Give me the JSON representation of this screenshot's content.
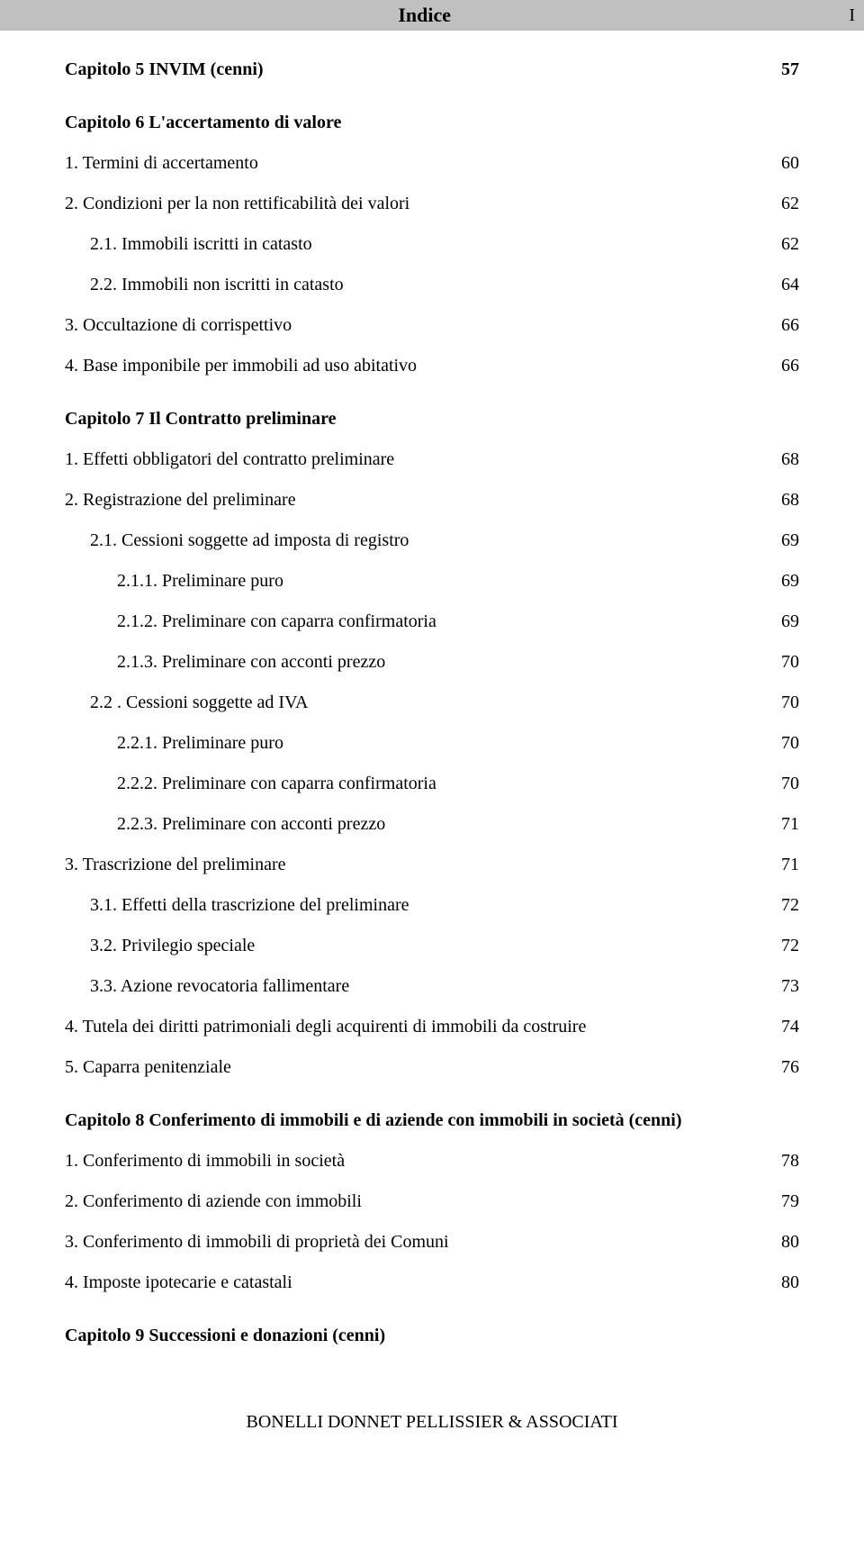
{
  "header": {
    "title": "Indice",
    "page_marker": "I"
  },
  "entries": [
    {
      "type": "chapter",
      "first": true,
      "label": "Capitolo 5 INVIM (cenni)",
      "page": "57"
    },
    {
      "type": "chapter",
      "label": "Capitolo 6 L'accertamento di valore",
      "page": ""
    },
    {
      "type": "item",
      "indent": 0,
      "label": "1.   Termini di accertamento",
      "page": "60"
    },
    {
      "type": "item",
      "indent": 0,
      "label": "2.   Condizioni per la non rettificabilità dei valori",
      "page": "62"
    },
    {
      "type": "item",
      "indent": 1,
      "label": "2.1. Immobili iscritti in catasto",
      "page": "62"
    },
    {
      "type": "item",
      "indent": 1,
      "label": "2.2. Immobili non iscritti in catasto",
      "page": "64"
    },
    {
      "type": "item",
      "indent": 0,
      "label": "3.   Occultazione di corrispettivo",
      "page": "66"
    },
    {
      "type": "item",
      "indent": 0,
      "label": "4.   Base imponibile per immobili ad uso abitativo",
      "page": "66"
    },
    {
      "type": "chapter",
      "label": "Capitolo 7  Il Contratto preliminare",
      "page": ""
    },
    {
      "type": "item",
      "indent": 0,
      "label": "1.   Effetti obbligatori del contratto preliminare",
      "page": "68"
    },
    {
      "type": "item",
      "indent": 0,
      "label": "2.   Registrazione del preliminare",
      "page": "68"
    },
    {
      "type": "item",
      "indent": 1,
      "label": "2.1. Cessioni soggette ad imposta di registro",
      "page": "69"
    },
    {
      "type": "item",
      "indent": 2,
      "label": "2.1.1. Preliminare puro",
      "page": "69"
    },
    {
      "type": "item",
      "indent": 2,
      "label": "2.1.2. Preliminare con caparra confirmatoria",
      "page": "69"
    },
    {
      "type": "item",
      "indent": 2,
      "label": "2.1.3. Preliminare con acconti prezzo",
      "page": "70"
    },
    {
      "type": "item",
      "indent": 1,
      "label": "2.2 . Cessioni soggette ad IVA",
      "page": "70"
    },
    {
      "type": "item",
      "indent": 2,
      "label": "2.2.1. Preliminare puro",
      "page": "70"
    },
    {
      "type": "item",
      "indent": 2,
      "label": "2.2.2. Preliminare con caparra confirmatoria",
      "page": "70"
    },
    {
      "type": "item",
      "indent": 2,
      "label": "2.2.3. Preliminare con acconti prezzo",
      "page": "71"
    },
    {
      "type": "item",
      "indent": 0,
      "label": "3. Trascrizione del preliminare",
      "page": "71"
    },
    {
      "type": "item",
      "indent": 1,
      "label": "3.1. Effetti della trascrizione del preliminare",
      "page": "72"
    },
    {
      "type": "item",
      "indent": 1,
      "label": "3.2. Privilegio speciale",
      "page": "72"
    },
    {
      "type": "item",
      "indent": 1,
      "label": "3.3. Azione revocatoria fallimentare",
      "page": "73"
    },
    {
      "type": "item",
      "indent": 0,
      "label": "4.  Tutela dei diritti patrimoniali degli acquirenti di immobili da costruire",
      "page": "74"
    },
    {
      "type": "item",
      "indent": 0,
      "label": "5. Caparra penitenziale",
      "page": "76"
    },
    {
      "type": "chapter",
      "label": "Capitolo 8 Conferimento di immobili e di aziende con immobili in società (cenni)",
      "page": ""
    },
    {
      "type": "item",
      "indent": 0,
      "label": "1.   Conferimento di immobili in società",
      "page": "78"
    },
    {
      "type": "item",
      "indent": 0,
      "label": "2.   Conferimento di aziende con immobili",
      "page": "79"
    },
    {
      "type": "item",
      "indent": 0,
      "label": "3.   Conferimento di immobili di proprietà dei Comuni",
      "page": "80"
    },
    {
      "type": "item",
      "indent": 0,
      "label": "4.   Imposte ipotecarie e catastali",
      "page": "80"
    },
    {
      "type": "chapter",
      "label": "Capitolo 9 Successioni e donazioni (cenni)",
      "page": ""
    }
  ],
  "footer": {
    "text": "BONELLI DONNET PELLISSIER & ASSOCIATI"
  }
}
